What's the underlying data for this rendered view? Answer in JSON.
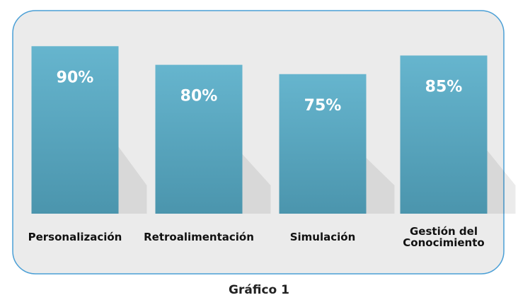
{
  "chart_data": {
    "type": "bar",
    "title": "Gráfico 1",
    "categories": [
      "Personalización",
      "Retroalimentación",
      "Simulación",
      "Gestión del Conocimiento"
    ],
    "values": [
      90,
      80,
      75,
      85
    ],
    "value_labels": [
      "90%",
      "80%",
      "75%",
      "85%"
    ],
    "color": "#5aa9c3"
  }
}
